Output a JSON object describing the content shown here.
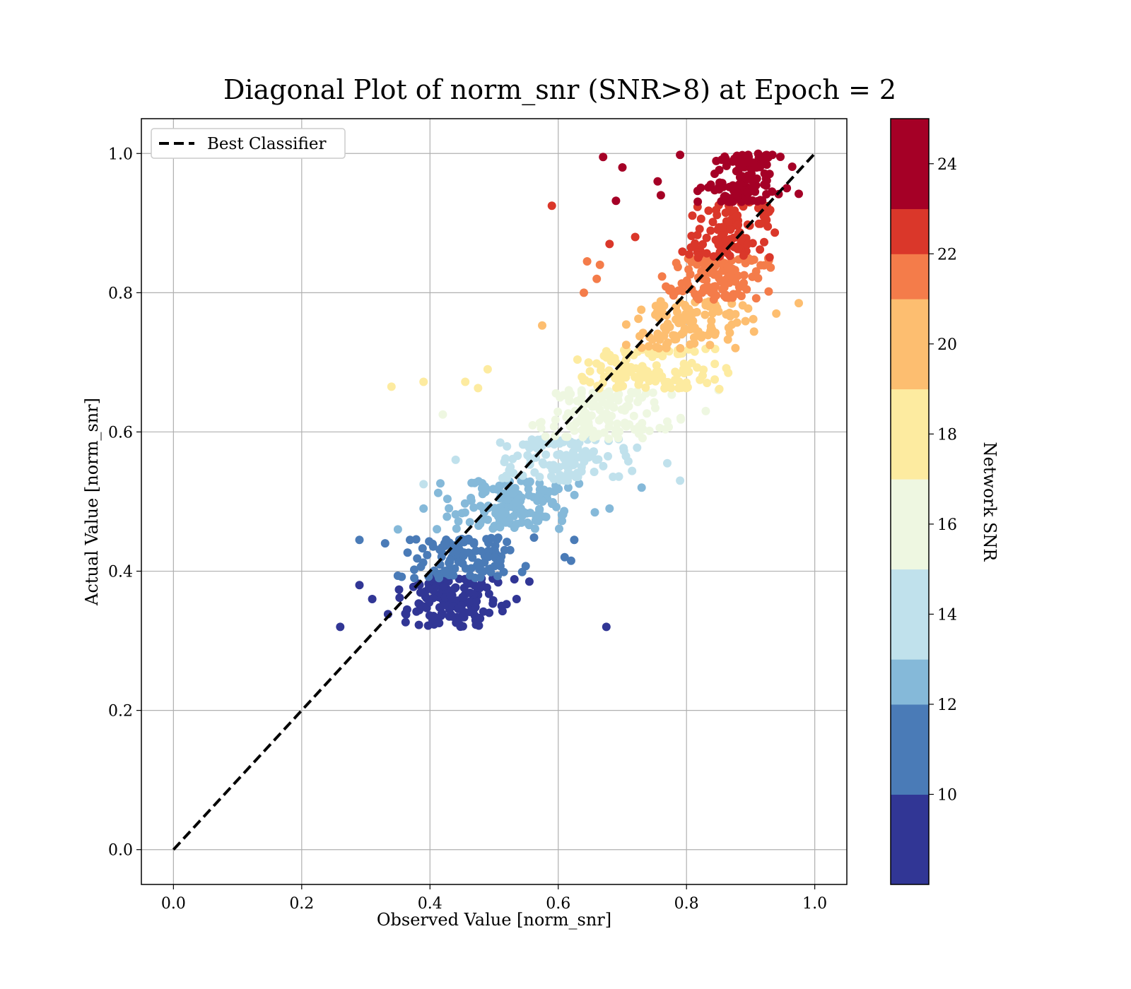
{
  "chart_data": {
    "type": "scatter",
    "title": "Diagonal Plot of norm_snr (SNR>8) at Epoch = 2",
    "xlabel": "Observed Value [norm_snr]",
    "ylabel": "Actual Value [norm_snr]",
    "xlim": [
      -0.05,
      1.05
    ],
    "ylim": [
      -0.05,
      1.05
    ],
    "xticks": [
      "0.0",
      "0.2",
      "0.4",
      "0.6",
      "0.8",
      "1.0"
    ],
    "yticks": [
      "0.0",
      "0.2",
      "0.4",
      "0.6",
      "0.8",
      "1.0"
    ],
    "grid": true,
    "legend": {
      "placement": "top-left",
      "entries": [
        "Best Classifier"
      ]
    },
    "reference_line": {
      "label": "Best Classifier",
      "style": "dashed",
      "color": "#000000",
      "x": [
        0.0,
        1.0
      ],
      "y": [
        0.0,
        1.0
      ]
    },
    "colorbar": {
      "label": "Network SNR",
      "range": [
        8,
        25
      ],
      "ticks": [
        "10",
        "12",
        "14",
        "16",
        "18",
        "20",
        "22",
        "24"
      ],
      "bins": [
        {
          "min": 8,
          "max": 10,
          "color": "#313695"
        },
        {
          "min": 10,
          "max": 12,
          "color": "#4a7bb7"
        },
        {
          "min": 12,
          "max": 13,
          "color": "#85b9d9"
        },
        {
          "min": 13,
          "max": 15,
          "color": "#c0e1ec"
        },
        {
          "min": 15,
          "max": 17,
          "color": "#eef7e1"
        },
        {
          "min": 17,
          "max": 19,
          "color": "#fdeba0"
        },
        {
          "min": 19,
          "max": 21,
          "color": "#fdbe70"
        },
        {
          "min": 21,
          "max": 22,
          "color": "#f47c4a"
        },
        {
          "min": 22,
          "max": 23,
          "color": "#da372a"
        },
        {
          "min": 23,
          "max": 25,
          "color": "#a50026"
        }
      ]
    },
    "clusters": [
      {
        "snr": 9,
        "x_center": 0.43,
        "x_spread": 0.07,
        "y_range": [
          0.32,
          0.39
        ],
        "count": 140,
        "outliers": [
          [
            0.26,
            0.32
          ],
          [
            0.29,
            0.38
          ],
          [
            0.31,
            0.36
          ],
          [
            0.675,
            0.32
          ],
          [
            0.535,
            0.36
          ],
          [
            0.555,
            0.385
          ]
        ]
      },
      {
        "snr": 10.5,
        "x_center": 0.46,
        "x_spread": 0.08,
        "y_range": [
          0.39,
          0.45
        ],
        "count": 110,
        "outliers": [
          [
            0.29,
            0.445
          ],
          [
            0.33,
            0.44
          ],
          [
            0.62,
            0.415
          ],
          [
            0.61,
            0.42
          ],
          [
            0.625,
            0.445
          ]
        ]
      },
      {
        "snr": 12.5,
        "x_center": 0.53,
        "x_spread": 0.09,
        "y_range": [
          0.46,
          0.53
        ],
        "count": 150,
        "outliers": [
          [
            0.35,
            0.46
          ],
          [
            0.39,
            0.49
          ],
          [
            0.73,
            0.52
          ],
          [
            0.68,
            0.49
          ]
        ]
      },
      {
        "snr": 14,
        "x_center": 0.6,
        "x_spread": 0.09,
        "y_range": [
          0.53,
          0.59
        ],
        "count": 120,
        "outliers": [
          [
            0.39,
            0.525
          ],
          [
            0.44,
            0.56
          ],
          [
            0.79,
            0.53
          ],
          [
            0.77,
            0.555
          ]
        ]
      },
      {
        "snr": 16,
        "x_center": 0.67,
        "x_spread": 0.09,
        "y_range": [
          0.59,
          0.66
        ],
        "count": 150,
        "outliers": [
          [
            0.42,
            0.625
          ],
          [
            0.77,
            0.615
          ],
          [
            0.83,
            0.63
          ],
          [
            0.85,
            0.66
          ]
        ]
      },
      {
        "snr": 18,
        "x_center": 0.74,
        "x_spread": 0.09,
        "y_range": [
          0.66,
          0.72
        ],
        "count": 120,
        "outliers": [
          [
            0.34,
            0.665
          ],
          [
            0.39,
            0.672
          ],
          [
            0.455,
            0.672
          ],
          [
            0.475,
            0.663
          ],
          [
            0.49,
            0.69
          ],
          [
            0.865,
            0.685
          ]
        ]
      },
      {
        "snr": 19.5,
        "x_center": 0.81,
        "x_spread": 0.08,
        "y_range": [
          0.72,
          0.79
        ],
        "count": 110,
        "outliers": [
          [
            0.575,
            0.753
          ],
          [
            0.94,
            0.77
          ],
          [
            0.975,
            0.785
          ]
        ]
      },
      {
        "snr": 21,
        "x_center": 0.85,
        "x_spread": 0.08,
        "y_range": [
          0.79,
          0.85
        ],
        "count": 120,
        "outliers": [
          [
            0.64,
            0.8
          ],
          [
            0.66,
            0.82
          ],
          [
            0.645,
            0.845
          ],
          [
            0.665,
            0.84
          ]
        ]
      },
      {
        "snr": 22.5,
        "x_center": 0.87,
        "x_spread": 0.06,
        "y_range": [
          0.85,
          0.93
        ],
        "count": 110,
        "outliers": [
          [
            0.59,
            0.925
          ],
          [
            0.68,
            0.87
          ],
          [
            0.72,
            0.88
          ]
        ]
      },
      {
        "snr": 24,
        "x_center": 0.89,
        "x_spread": 0.045,
        "y_range": [
          0.93,
          1.0
        ],
        "count": 130,
        "outliers": [
          [
            0.67,
            0.995
          ],
          [
            0.7,
            0.98
          ],
          [
            0.69,
            0.932
          ],
          [
            0.755,
            0.96
          ],
          [
            0.76,
            0.94
          ],
          [
            0.79,
            0.998
          ],
          [
            0.975,
            0.942
          ]
        ]
      }
    ]
  }
}
